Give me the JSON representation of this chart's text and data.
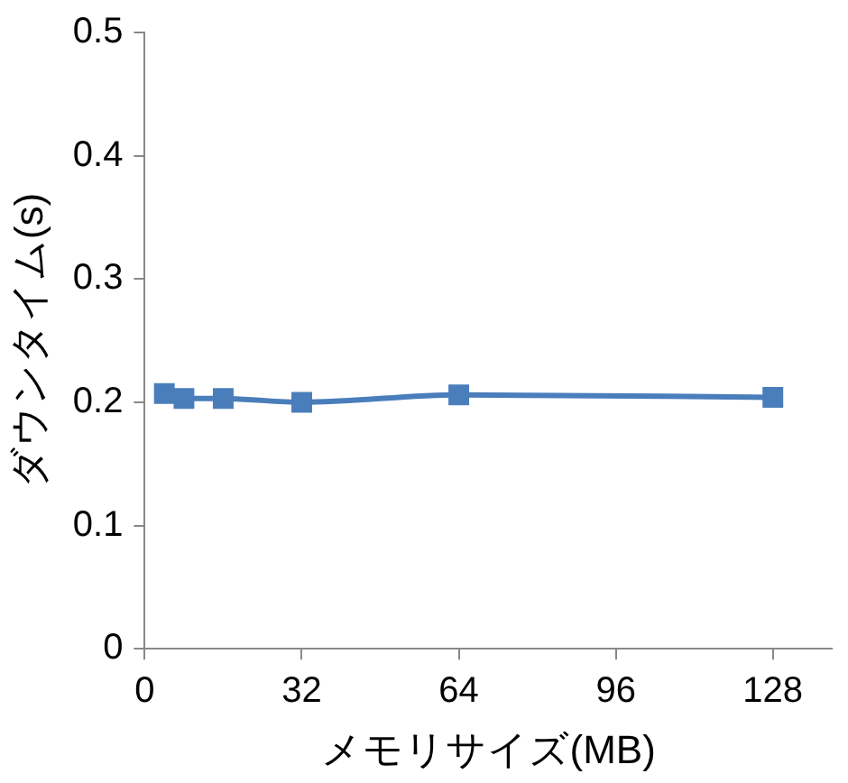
{
  "chart_data": {
    "type": "line",
    "xlabel": "メモリサイズ(MB)",
    "ylabel": "ダウンタイム(s)",
    "x": [
      4,
      8,
      16,
      32,
      64,
      128
    ],
    "series": [
      {
        "color": "#4a7ebb",
        "values": [
          0.207,
          0.203,
          0.203,
          0.2,
          0.206,
          0.204
        ]
      }
    ],
    "xlim": [
      0,
      140
    ],
    "xticks": [
      0,
      32,
      64,
      96,
      128
    ],
    "ylim": [
      0,
      0.5
    ],
    "yticks": [
      0,
      0.1,
      0.2,
      0.3,
      0.4,
      0.5
    ],
    "grid": false,
    "legend": false,
    "marker": "square",
    "line_style": "solid"
  }
}
